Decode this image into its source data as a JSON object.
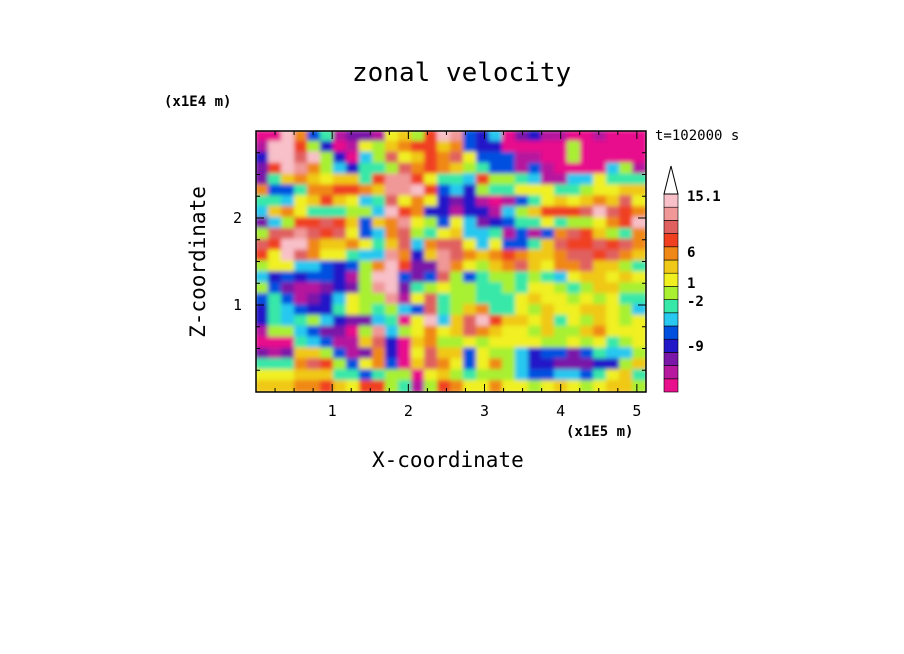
{
  "chart_data": {
    "type": "heatmap",
    "title": "zonal velocity",
    "xlabel": "X-coordinate",
    "ylabel": "Z-coordinate",
    "x_multiplier": "(x1E5 m)",
    "y_multiplier": "(x1E4 m)",
    "annotation": "t=102000 s",
    "x_ticks": [
      1,
      2,
      3,
      4,
      5
    ],
    "y_ticks": [
      1,
      2
    ],
    "xlim": [
      0,
      5.12
    ],
    "ylim": [
      0,
      3.0
    ],
    "colorbar": {
      "labels": [
        "15.1",
        "6",
        "1",
        "-2",
        "-9"
      ],
      "colors": [
        "#e8108c",
        "#b6189e",
        "#7a16a8",
        "#2218c8",
        "#0050e0",
        "#28c8f0",
        "#38e8a8",
        "#a8f030",
        "#f0f020",
        "#f0c818",
        "#f08818",
        "#f04020",
        "#e06060",
        "#f09898",
        "#f8c0c8"
      ],
      "extend_max": true
    },
    "field": [
      "AAOKEGBCCBIJHLONEDFACDBBAABAAA",
      "BOOLHDABIHJKLLJKEDDAAAAAHAAAAA",
      "DOOMOHDAFHMIJLKMIEEEBBAAHAAAAA",
      "CLONKHFDGGHMKLKJHGEEBEBAAAAFHB",
      "CGJKJIJJGLNNLIGGFLHHGFBBFFIGGG",
      "KEEGKKLLKJNNOLEFDHGGIIIGGHIIJJ",
      "GGFIJLJIFGMIKIDCDBABEGIJIJKJMI",
      "FJKIGGGHHFOLKDDBDDBFHJLLLMOMLK",
      "CFHLLMLJEJKNIHEIFCDEGGIGHHIKLO",
      "HMMNMLMIEFKMHGIJFFGBEBEKMLJHGK",
      "MLOOKJJKIGJMFKMMIFIEEGJMLLMLMK",
      "LIOMKIIGFFNKDJNMKJKLKJJKMMLMKJ",
      "HIIFFEDEHKOLCCNKIHJKMJIKKMJJHG",
      "FDEDEEDBHOOECEMHEGHHGHGFIJJIJI",
      "HECBBCDCHNOCGHIHHGGHGIIHGHJJHH",
      "EGEBCDFIHHNBIMGHHGGGIJIIHIHIGG",
      "DGFEDDGIHGHFEMGHJKGGIHJIIJJIHF",
      "DGFGHFDCCFGAIOFJMOLJJIJGIHJIHI",
      "BHHFECCAHNFHIKIJMKJIIHJHHJKIII",
      "AAAGFEBBJMDAJKHHIHIIIIHHIHIGHI",
      "CBCJJHEBCKDAIMJJEIHHFDEECEGFFH",
      "GGGKMLHEIKEAJMKIEIKHFDDCCCDDHJ",
      "IIIJJJGGEGHHAIJHGHHHFEEFFEGIJG",
      "JJJKKLJILLHGBHLKIIKIIHIJIHIJJH"
    ]
  }
}
